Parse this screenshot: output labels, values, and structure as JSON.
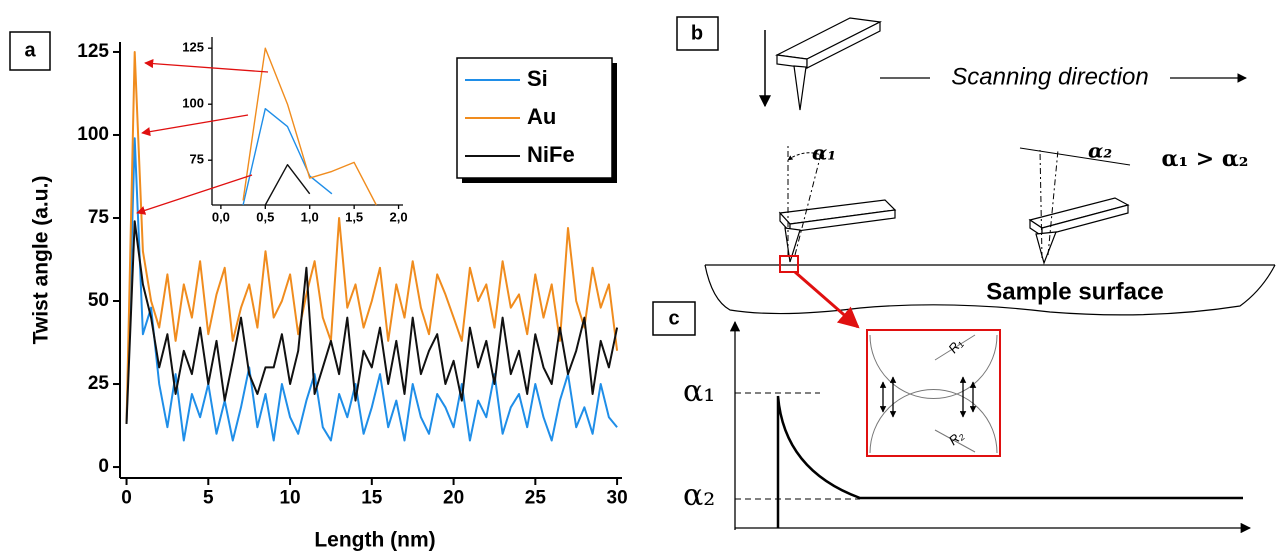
{
  "chart_data": [
    {
      "type": "line",
      "x_label": "Length (nm)",
      "y_label": "Twist angle (a.u.)",
      "x": [
        0,
        0.5,
        1,
        1.5,
        2,
        2.5,
        3,
        3.5,
        4,
        4.5,
        5,
        5.5,
        6,
        6.5,
        7,
        7.5,
        8,
        8.5,
        9,
        9.5,
        10,
        10.5,
        11,
        11.5,
        12,
        12.5,
        13,
        13.5,
        14,
        14.5,
        15,
        15.5,
        16,
        16.5,
        17,
        17.5,
        18,
        18.5,
        19,
        19.5,
        20,
        20.5,
        21,
        21.5,
        22,
        22.5,
        23,
        23.5,
        24,
        24.5,
        25,
        25.5,
        26,
        26.5,
        27,
        27.5,
        28,
        28.5,
        29,
        29.5,
        30
      ],
      "series": [
        {
          "name": "Si",
          "color": "#1f8ee8",
          "values": [
            13,
            99,
            40,
            48,
            25,
            12,
            28,
            8,
            22,
            15,
            25,
            10,
            20,
            8,
            18,
            30,
            12,
            22,
            8,
            25,
            15,
            10,
            20,
            28,
            12,
            8,
            22,
            15,
            25,
            10,
            18,
            28,
            12,
            20,
            8,
            25,
            15,
            10,
            22,
            18,
            12,
            25,
            8,
            20,
            15,
            28,
            10,
            18,
            22,
            12,
            25,
            15,
            8,
            20,
            28,
            12,
            18,
            10,
            25,
            15,
            12
          ]
        },
        {
          "name": "Au",
          "color": "#f08c1e",
          "values": [
            13,
            125,
            65,
            50,
            42,
            58,
            38,
            55,
            45,
            62,
            40,
            52,
            60,
            38,
            48,
            55,
            42,
            65,
            45,
            50,
            58,
            40,
            52,
            62,
            45,
            38,
            75,
            48,
            55,
            42,
            50,
            60,
            38,
            55,
            45,
            62,
            48,
            40,
            58,
            52,
            45,
            38,
            60,
            50,
            55,
            42,
            62,
            48,
            52,
            40,
            58,
            45,
            55,
            38,
            72,
            50,
            42,
            60,
            48,
            55,
            35
          ]
        },
        {
          "name": "NiFe",
          "color": "#111111",
          "values": [
            13,
            74,
            55,
            45,
            30,
            40,
            22,
            35,
            28,
            42,
            25,
            38,
            20,
            32,
            45,
            28,
            22,
            30,
            30,
            40,
            25,
            35,
            60,
            22,
            30,
            38,
            28,
            45,
            20,
            35,
            30,
            42,
            25,
            38,
            22,
            45,
            28,
            35,
            40,
            25,
            32,
            20,
            42,
            30,
            38,
            25,
            45,
            28,
            35,
            22,
            40,
            30,
            25,
            42,
            28,
            35,
            45,
            22,
            38,
            30,
            42
          ]
        }
      ],
      "xlim": [
        -0.4,
        30.3
      ],
      "ylim": [
        -3.3,
        128
      ],
      "xticks": [
        0,
        5,
        10,
        15,
        20,
        25,
        30
      ],
      "yticks": [
        0,
        25,
        50,
        75,
        100,
        125
      ]
    },
    {
      "type": "line",
      "x": [
        0.25,
        0.5,
        0.75,
        1,
        1.25,
        1.5,
        1.75
      ],
      "series": [
        {
          "name": "Si",
          "color": "#1f8ee8",
          "values": [
            55,
            98,
            90,
            68,
            60,
            null,
            null
          ]
        },
        {
          "name": "Au",
          "color": "#f08c1e",
          "values": [
            57,
            125,
            100,
            67,
            70,
            74,
            55
          ]
        },
        {
          "name": "NiFe",
          "color": "#111111",
          "values": [
            null,
            55,
            73,
            60,
            null,
            null,
            null
          ]
        }
      ],
      "xlim": [
        -0.1,
        2.05
      ],
      "ylim": [
        55,
        130
      ],
      "xticks": [
        {
          "value": 0,
          "label": "0,0"
        },
        {
          "value": 0.5,
          "label": "0,5"
        },
        {
          "value": 1,
          "label": "1,0"
        },
        {
          "value": 1.5,
          "label": "1,5"
        },
        {
          "value": 2,
          "label": "2,0"
        }
      ],
      "yticks": [
        75,
        100,
        125
      ]
    }
  ],
  "panel_labels": [
    "a",
    "b",
    "c"
  ],
  "diagram": {
    "scanning_direction": "Scanning direction",
    "relation": "α₁ > α₂",
    "alpha1": "α₁",
    "alpha2": "α₂",
    "surface": "Sample surface",
    "r1": "R₁",
    "r2": "R₂",
    "c_alpha1": "α₁",
    "c_alpha2": "α₂"
  }
}
